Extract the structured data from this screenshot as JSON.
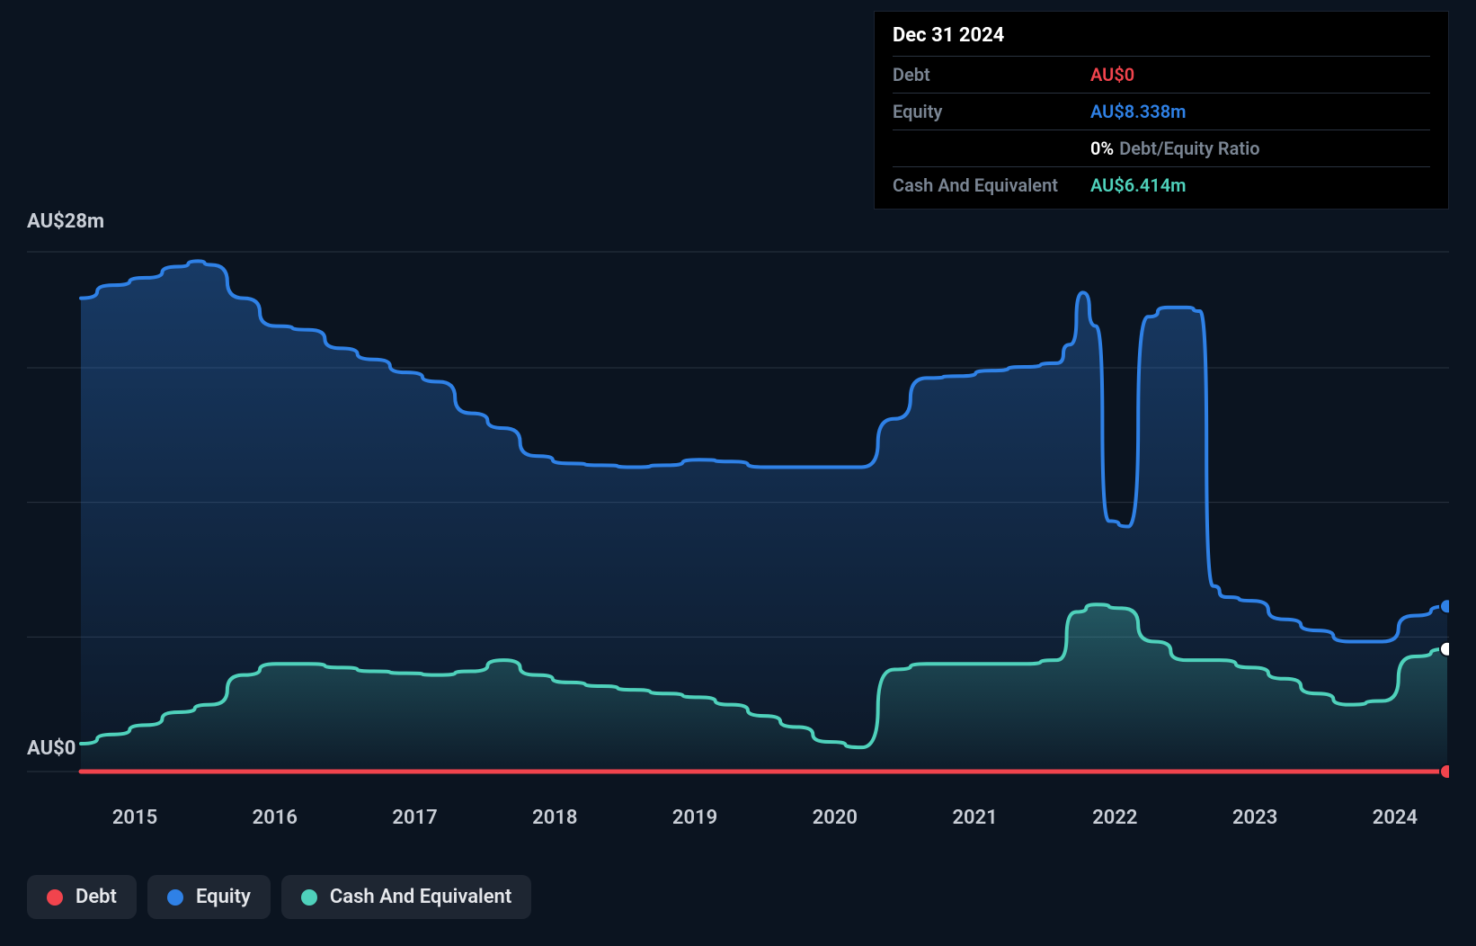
{
  "chart": {
    "type": "area-line",
    "background_color": "#0b1420",
    "grid_color": "#2a3340",
    "axis_text_color": "#c9ced6",
    "line_width": 4,
    "y_axis": {
      "min": 0,
      "max": 28,
      "labels": [
        {
          "value": 28,
          "text": "AU$28m"
        },
        {
          "value": 0,
          "text": "AU$0"
        }
      ],
      "gridlines": [
        0,
        7.25,
        14.5,
        21.75,
        28
      ]
    },
    "x_axis": {
      "labels": [
        "2015",
        "2016",
        "2017",
        "2018",
        "2019",
        "2020",
        "2021",
        "2022",
        "2023",
        "2024"
      ],
      "domain_min": 2014.5,
      "domain_max": 2025.0
    },
    "series": {
      "debt": {
        "label": "Debt",
        "color": "#f1444d",
        "fill": false,
        "values": [
          [
            2014.5,
            0
          ],
          [
            2014.75,
            0
          ],
          [
            2015,
            0
          ],
          [
            2015.25,
            0
          ],
          [
            2015.5,
            0
          ],
          [
            2015.75,
            0
          ],
          [
            2016,
            0
          ],
          [
            2016.25,
            0
          ],
          [
            2016.5,
            0
          ],
          [
            2016.75,
            0
          ],
          [
            2017,
            0
          ],
          [
            2017.25,
            0
          ],
          [
            2017.5,
            0
          ],
          [
            2017.75,
            0
          ],
          [
            2018,
            0
          ],
          [
            2018.25,
            0
          ],
          [
            2018.5,
            0
          ],
          [
            2018.75,
            0
          ],
          [
            2019,
            0
          ],
          [
            2019.25,
            0
          ],
          [
            2019.5,
            0
          ],
          [
            2019.75,
            0
          ],
          [
            2020,
            0
          ],
          [
            2020.25,
            0
          ],
          [
            2020.5,
            0
          ],
          [
            2020.75,
            0
          ],
          [
            2021,
            0
          ],
          [
            2021.25,
            0
          ],
          [
            2021.5,
            0
          ],
          [
            2021.75,
            0
          ],
          [
            2022,
            0
          ],
          [
            2022.25,
            0
          ],
          [
            2022.5,
            0
          ],
          [
            2022.75,
            0
          ],
          [
            2023,
            0
          ],
          [
            2023.25,
            0
          ],
          [
            2023.5,
            0
          ],
          [
            2023.75,
            0
          ],
          [
            2024,
            0
          ],
          [
            2024.25,
            0
          ],
          [
            2024.5,
            0
          ],
          [
            2024.75,
            0
          ],
          [
            2025,
            0
          ]
        ]
      },
      "equity": {
        "label": "Equity",
        "color": "#2f81e6",
        "fill": true,
        "fill_gradient_top": "rgba(47,129,230,0.35)",
        "fill_gradient_bottom": "rgba(47,129,230,0.03)",
        "values": [
          [
            2014.5,
            25.5
          ],
          [
            2014.75,
            26.2
          ],
          [
            2015,
            26.6
          ],
          [
            2015.25,
            27.2
          ],
          [
            2015.4,
            27.5
          ],
          [
            2015.5,
            27.3
          ],
          [
            2015.75,
            25.5
          ],
          [
            2016,
            24.0
          ],
          [
            2016.25,
            23.8
          ],
          [
            2016.5,
            22.8
          ],
          [
            2016.75,
            22.2
          ],
          [
            2017,
            21.5
          ],
          [
            2017.25,
            21.0
          ],
          [
            2017.5,
            19.3
          ],
          [
            2017.75,
            18.5
          ],
          [
            2018,
            17.0
          ],
          [
            2018.25,
            16.6
          ],
          [
            2018.5,
            16.5
          ],
          [
            2018.75,
            16.4
          ],
          [
            2019,
            16.5
          ],
          [
            2019.25,
            16.8
          ],
          [
            2019.5,
            16.7
          ],
          [
            2019.75,
            16.4
          ],
          [
            2020,
            16.4
          ],
          [
            2020.25,
            16.4
          ],
          [
            2020.5,
            16.4
          ],
          [
            2020.75,
            19.0
          ],
          [
            2021,
            21.2
          ],
          [
            2021.25,
            21.3
          ],
          [
            2021.5,
            21.6
          ],
          [
            2021.75,
            21.8
          ],
          [
            2022,
            22.0
          ],
          [
            2022.1,
            23.0
          ],
          [
            2022.2,
            25.8
          ],
          [
            2022.3,
            24.0
          ],
          [
            2022.4,
            13.5
          ],
          [
            2022.55,
            13.2
          ],
          [
            2022.7,
            24.5
          ],
          [
            2022.85,
            25.0
          ],
          [
            2023,
            25.0
          ],
          [
            2023.1,
            24.8
          ],
          [
            2023.2,
            10.0
          ],
          [
            2023.3,
            9.4
          ],
          [
            2023.5,
            9.2
          ],
          [
            2023.75,
            8.2
          ],
          [
            2024,
            7.6
          ],
          [
            2024.25,
            7.0
          ],
          [
            2024.5,
            7.0
          ],
          [
            2024.75,
            8.4
          ],
          [
            2025,
            8.9
          ]
        ]
      },
      "cash": {
        "label": "Cash And Equivalent",
        "color": "#4fd1bb",
        "fill": true,
        "fill_gradient_top": "rgba(79,209,187,0.30)",
        "fill_gradient_bottom": "rgba(79,209,187,0.02)",
        "values": [
          [
            2014.5,
            1.5
          ],
          [
            2014.75,
            2.0
          ],
          [
            2015,
            2.5
          ],
          [
            2015.25,
            3.2
          ],
          [
            2015.5,
            3.6
          ],
          [
            2015.75,
            5.2
          ],
          [
            2016,
            5.8
          ],
          [
            2016.25,
            5.8
          ],
          [
            2016.5,
            5.6
          ],
          [
            2016.75,
            5.4
          ],
          [
            2017,
            5.3
          ],
          [
            2017.25,
            5.2
          ],
          [
            2017.5,
            5.4
          ],
          [
            2017.75,
            6.0
          ],
          [
            2018,
            5.2
          ],
          [
            2018.25,
            4.8
          ],
          [
            2018.5,
            4.6
          ],
          [
            2018.75,
            4.4
          ],
          [
            2019,
            4.2
          ],
          [
            2019.25,
            4.0
          ],
          [
            2019.5,
            3.6
          ],
          [
            2019.75,
            3.0
          ],
          [
            2020,
            2.4
          ],
          [
            2020.25,
            1.6
          ],
          [
            2020.5,
            1.3
          ],
          [
            2020.75,
            5.5
          ],
          [
            2021,
            5.8
          ],
          [
            2021.25,
            5.8
          ],
          [
            2021.5,
            5.8
          ],
          [
            2021.75,
            5.8
          ],
          [
            2022,
            6.0
          ],
          [
            2022.15,
            8.6
          ],
          [
            2022.3,
            9.0
          ],
          [
            2022.5,
            8.8
          ],
          [
            2022.75,
            7.0
          ],
          [
            2023,
            6.0
          ],
          [
            2023.25,
            6.0
          ],
          [
            2023.5,
            5.6
          ],
          [
            2023.75,
            5.0
          ],
          [
            2024,
            4.2
          ],
          [
            2024.25,
            3.6
          ],
          [
            2024.5,
            3.8
          ],
          [
            2024.75,
            6.2
          ],
          [
            2025,
            6.6
          ]
        ]
      }
    },
    "end_markers": [
      {
        "series": "equity",
        "color": "#2f81e6"
      },
      {
        "series": "cash",
        "color": "#ffffff"
      },
      {
        "series": "debt",
        "color": "#f1444d"
      }
    ]
  },
  "tooltip": {
    "date": "Dec 31 2024",
    "rows": [
      {
        "label": "Debt",
        "value": "AU$0",
        "color": "#f1444d"
      },
      {
        "label": "Equity",
        "value": "AU$8.338m",
        "color": "#2f81e6"
      }
    ],
    "ratio": {
      "pct": "0%",
      "label": "Debt/Equity Ratio"
    },
    "cash_row": {
      "label": "Cash And Equivalent",
      "value": "AU$6.414m",
      "color": "#4fd1bb"
    }
  },
  "legend": [
    {
      "label": "Debt",
      "color": "#f1444d"
    },
    {
      "label": "Equity",
      "color": "#2f81e6"
    },
    {
      "label": "Cash And Equivalent",
      "color": "#4fd1bb"
    }
  ]
}
